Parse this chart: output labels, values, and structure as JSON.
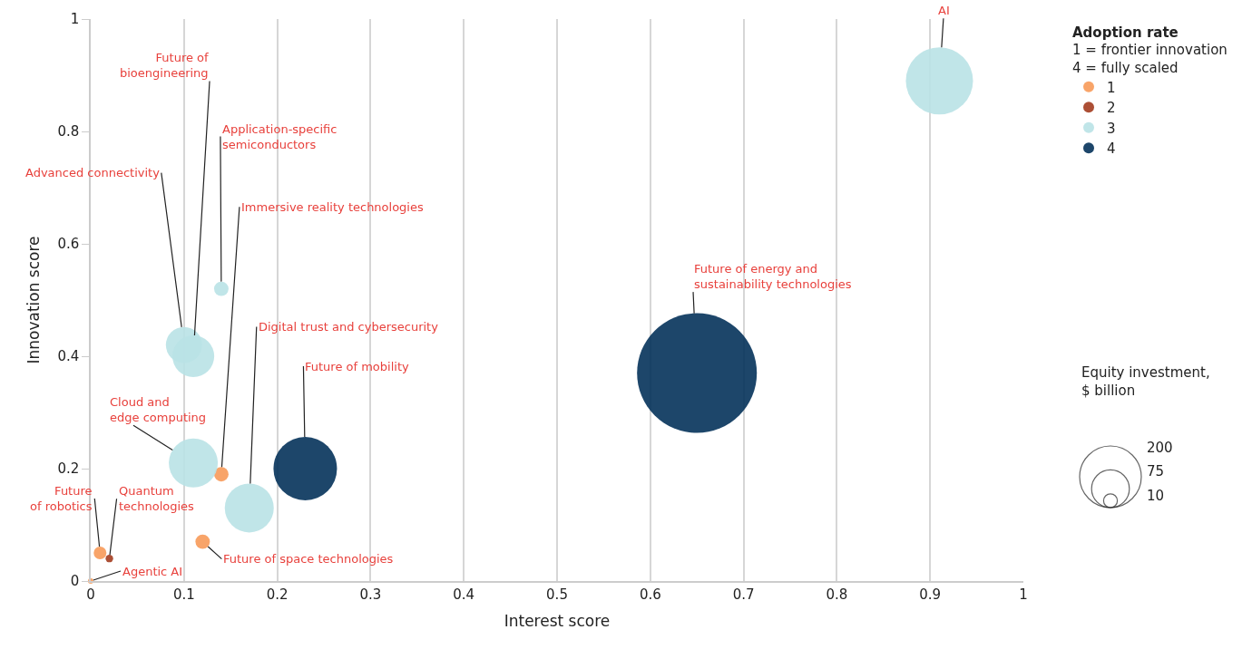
{
  "chart_data": {
    "type": "bubble",
    "xlabel": "Interest score",
    "ylabel": "Innovation score",
    "legend_title": "Adoption rate\n1 = frontier innovation\n4 = fully scaled",
    "xlim": [
      0,
      1
    ],
    "ylim": [
      0,
      1
    ],
    "xticks": [
      0,
      0.1,
      0.2,
      0.3,
      0.4,
      0.5,
      0.6,
      0.7,
      0.8,
      0.9,
      1
    ],
    "yticks": [
      0,
      0.2,
      0.4,
      0.6,
      0.8,
      1
    ],
    "grid": "x",
    "legend": "top right",
    "size_legend": [
      200,
      75,
      10
    ],
    "series": [
      {
        "name": "1",
        "color": "#f79a59",
        "x": [
          0,
          0.01,
          0.12,
          0.14
        ],
        "values": [
          0,
          0.05,
          0.07,
          0.19
        ],
        "sizes": [
          1.6,
          8.5,
          11,
          11
        ]
      },
      {
        "name": "2",
        "color": "#a33c1f",
        "x": [
          0.02
        ],
        "values": [
          0.04
        ],
        "sizes": [
          3
        ]
      },
      {
        "name": "3",
        "color": "#b9e2e6",
        "x": [
          0.17,
          0.11,
          0.1,
          0.11,
          0.14,
          0.91
        ],
        "values": [
          0.13,
          0.21,
          0.42,
          0.4,
          0.52,
          0.89
        ],
        "sizes": [
          126,
          126,
          69,
          92,
          11,
          237
        ]
      },
      {
        "name": "4",
        "color": "#04325a",
        "x": [
          0.23,
          0.65
        ],
        "values": [
          0.2,
          0.37
        ],
        "sizes": [
          212,
          754
        ]
      }
    ],
    "annotations": [
      {
        "text": "Agentic AI",
        "x": 0,
        "y": 0
      },
      {
        "text": "Future\nof robotics",
        "x": 0.01,
        "y": 0.05
      },
      {
        "text": "Quantum\ntechnologies",
        "x": 0.02,
        "y": 0.04
      },
      {
        "text": "Future of space technologies",
        "x": 0.12,
        "y": 0.07
      },
      {
        "text": "Immersive reality technologies",
        "x": 0.14,
        "y": 0.19
      },
      {
        "text": "Cloud and\nedge computing",
        "x": 0.11,
        "y": 0.21
      },
      {
        "text": "Digital trust and cybersecurity",
        "x": 0.17,
        "y": 0.13
      },
      {
        "text": "Future of mobility",
        "x": 0.23,
        "y": 0.2
      },
      {
        "text": "Advanced connectivity",
        "x": 0.1,
        "y": 0.42
      },
      {
        "text": "Future of\nbioengineering",
        "x": 0.11,
        "y": 0.4
      },
      {
        "text": "Application-specific\nsemiconductors",
        "x": 0.14,
        "y": 0.52
      },
      {
        "text": "Future of energy and\nsustainability technologies",
        "x": 0.65,
        "y": 0.37
      },
      {
        "text": "AI",
        "x": 0.91,
        "y": 0.89
      },
      "Equity investment,\n$ billion"
    ]
  }
}
